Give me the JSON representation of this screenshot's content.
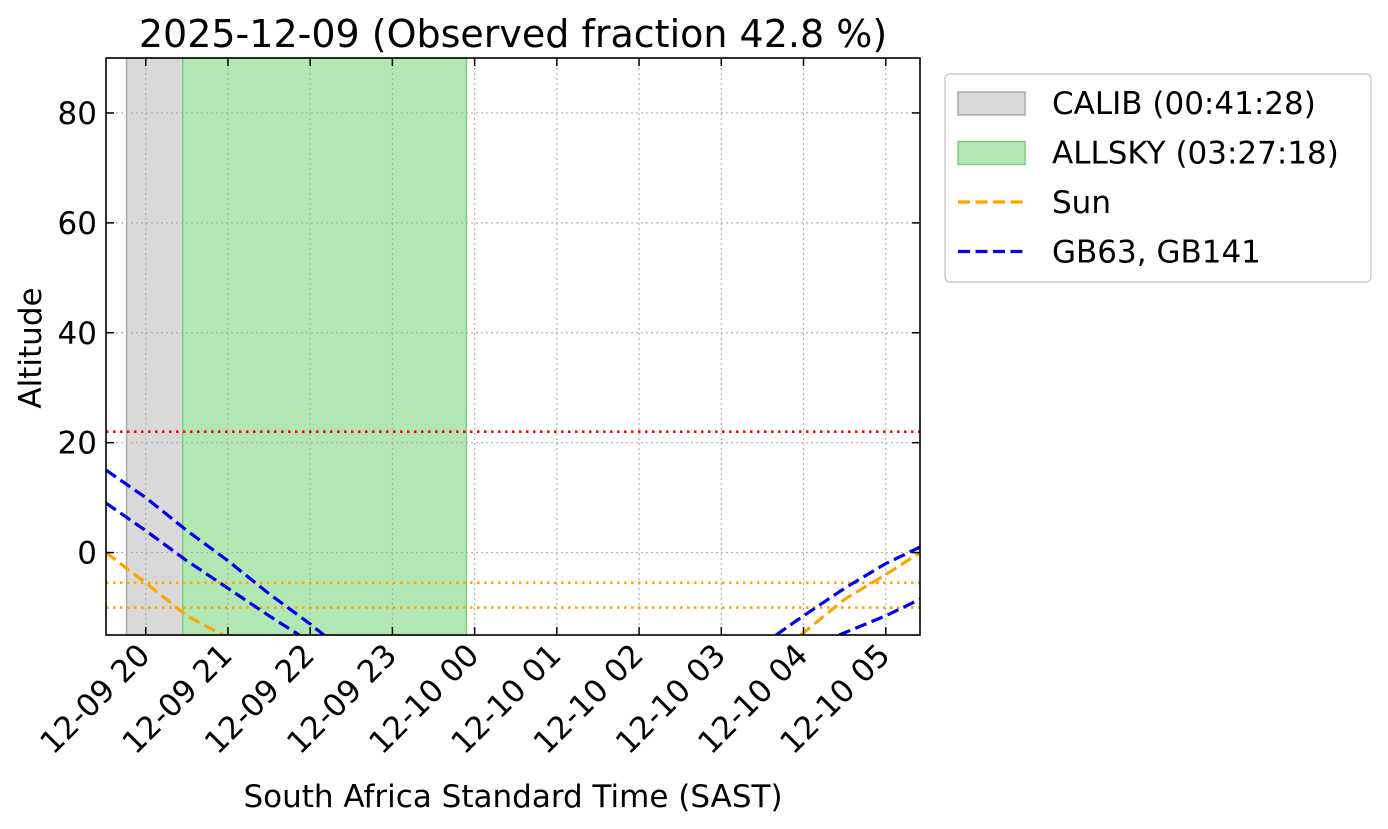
{
  "chart_data": {
    "type": "line",
    "title": "2025-12-09 (Observed fraction 42.8 %)",
    "xlabel": "South Africa Standard Time (SAST)",
    "ylabel": "Altitude",
    "x_unit": "hours",
    "xlim": [
      "2025-12-09 19:31",
      "2025-12-10 05:25"
    ],
    "ylim": [
      -15,
      90
    ],
    "y_ticks": [
      0,
      20,
      40,
      60,
      80
    ],
    "x_ticks": [
      {
        "t": "2025-12-09 20:00",
        "label": "12-09 20"
      },
      {
        "t": "2025-12-09 21:00",
        "label": "12-09 21"
      },
      {
        "t": "2025-12-09 22:00",
        "label": "12-09 22"
      },
      {
        "t": "2025-12-09 23:00",
        "label": "12-09 23"
      },
      {
        "t": "2025-12-10 00:00",
        "label": "12-10 00"
      },
      {
        "t": "2025-12-10 01:00",
        "label": "12-10 01"
      },
      {
        "t": "2025-12-10 02:00",
        "label": "12-10 02"
      },
      {
        "t": "2025-12-10 03:00",
        "label": "12-10 03"
      },
      {
        "t": "2025-12-10 04:00",
        "label": "12-10 04"
      },
      {
        "t": "2025-12-10 05:00",
        "label": "12-10 05"
      }
    ],
    "grid": true,
    "legend_position": "outside-right-top",
    "spans": [
      {
        "name": "CALIB (00:41:28)",
        "start": "2025-12-09 19:46",
        "end": "2025-12-09 20:27",
        "color": "#d9d9d9",
        "edge": "#aaaaaa"
      },
      {
        "name": "ALLSKY (03:27:18)",
        "start": "2025-12-09 20:27",
        "end": "2025-12-09 23:54",
        "color": "#b2e6b2",
        "edge": "#7fcc7f"
      }
    ],
    "hlines": [
      {
        "y": 22,
        "color": "#ff0000",
        "style": "dotted"
      },
      {
        "y": -5.5,
        "color": "#ffa500",
        "style": "dotted"
      },
      {
        "y": -10,
        "color": "#ffa500",
        "style": "dotted"
      }
    ],
    "series": [
      {
        "name": "Sun",
        "color": "#ffa500",
        "style": "dashed",
        "legend": true,
        "segments": [
          [
            [
              "2025-12-09 19:31",
              0
            ],
            [
              "2025-12-09 20:00",
              -5.5
            ],
            [
              "2025-12-09 20:30",
              -11.5
            ],
            [
              "2025-12-09 21:00",
              -15.5
            ]
          ],
          [
            [
              "2025-12-10 03:58",
              -15
            ],
            [
              "2025-12-10 04:30",
              -8.5
            ],
            [
              "2025-12-10 05:00",
              -4
            ],
            [
              "2025-12-10 05:25",
              0
            ]
          ]
        ]
      },
      {
        "name": "GB63, GB141",
        "color": "#0000ee",
        "style": "dashed",
        "legend": true,
        "segments": [
          [
            [
              "2025-12-09 19:31",
              15
            ],
            [
              "2025-12-09 20:00",
              10
            ],
            [
              "2025-12-09 20:30",
              4
            ],
            [
              "2025-12-09 21:00",
              -1.5
            ],
            [
              "2025-12-09 21:30",
              -7.5
            ],
            [
              "2025-12-09 22:00",
              -13
            ],
            [
              "2025-12-09 22:10",
              -15
            ]
          ],
          [
            [
              "2025-12-10 03:40",
              -15
            ],
            [
              "2025-12-10 04:00",
              -11.5
            ],
            [
              "2025-12-10 04:30",
              -6.5
            ],
            [
              "2025-12-10 05:00",
              -2
            ],
            [
              "2025-12-10 05:25",
              1
            ]
          ]
        ]
      },
      {
        "name": "",
        "color": "#0000ee",
        "style": "dashed",
        "legend": false,
        "segments": [
          [
            [
              "2025-12-09 19:31",
              9
            ],
            [
              "2025-12-09 20:00",
              4
            ],
            [
              "2025-12-09 20:30",
              -1.5
            ],
            [
              "2025-12-09 21:00",
              -6.5
            ],
            [
              "2025-12-09 21:30",
              -11.5
            ],
            [
              "2025-12-09 21:52",
              -15
            ]
          ],
          [
            [
              "2025-12-10 04:26",
              -15
            ],
            [
              "2025-12-10 05:00",
              -11.5
            ],
            [
              "2025-12-10 05:25",
              -8.5
            ]
          ]
        ]
      }
    ],
    "legend": [
      {
        "label": "CALIB (00:41:28)",
        "kind": "patch",
        "color": "#d9d9d9",
        "edge": "#aaaaaa"
      },
      {
        "label": "ALLSKY (03:27:18)",
        "kind": "patch",
        "color": "#b2e6b2",
        "edge": "#7fcc7f"
      },
      {
        "label": "Sun",
        "kind": "line",
        "color": "#ffa500"
      },
      {
        "label": "GB63, GB141",
        "kind": "line",
        "color": "#0000ee"
      }
    ]
  }
}
